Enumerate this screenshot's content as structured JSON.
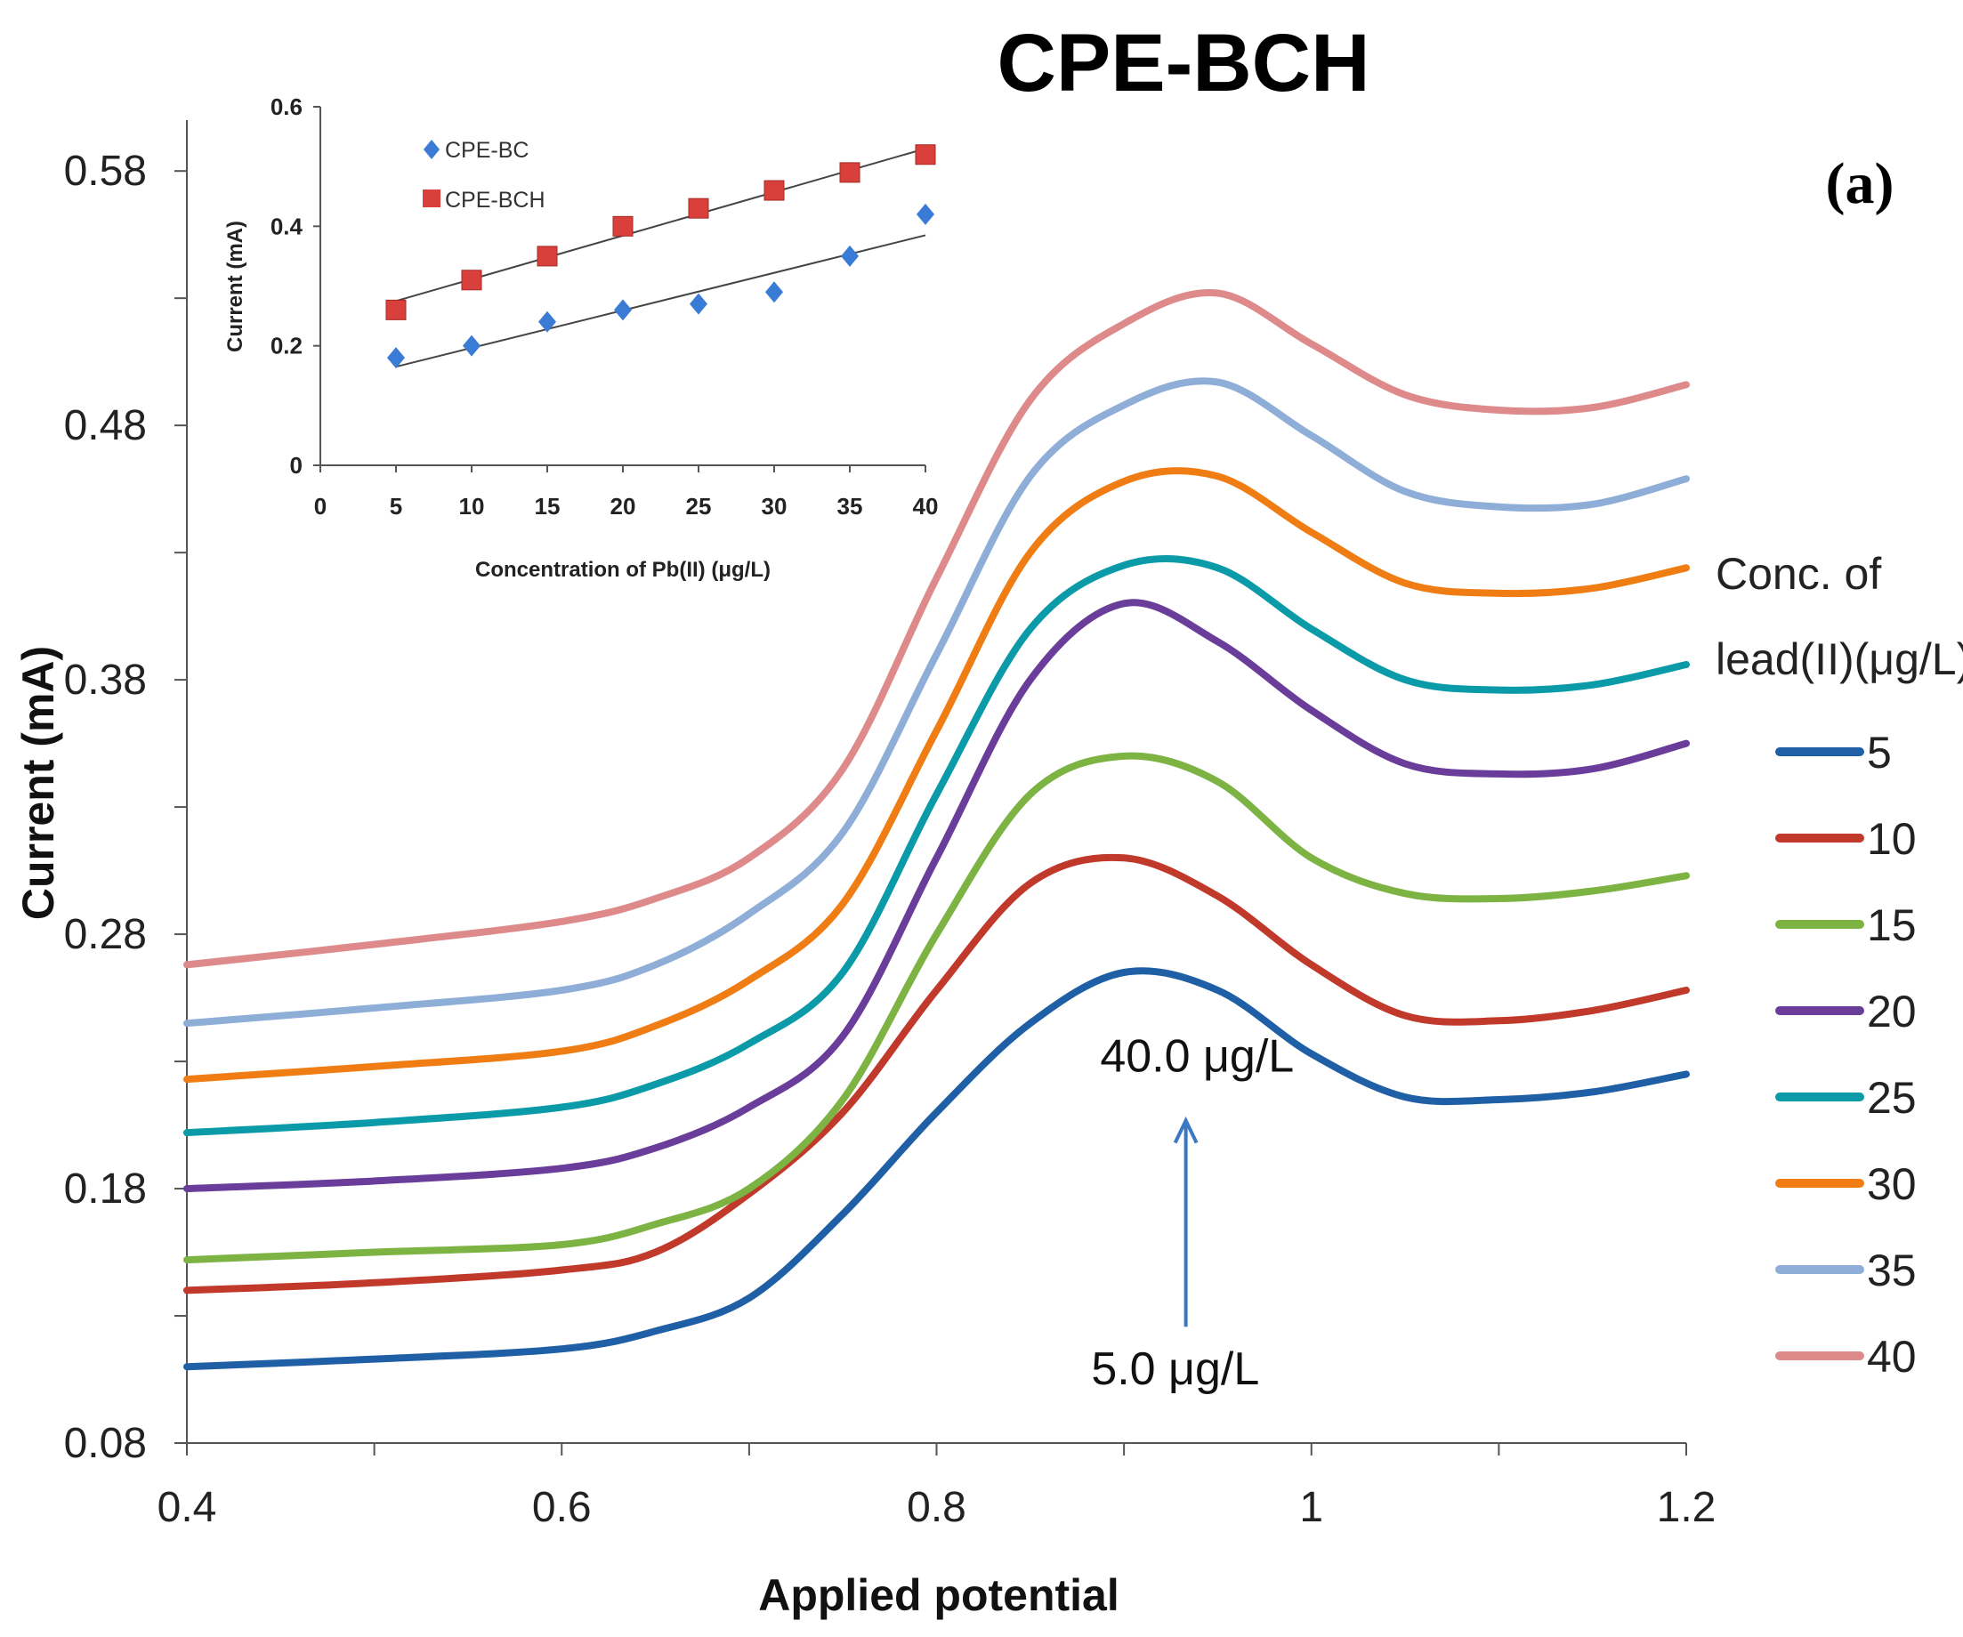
{
  "chart_data": {
    "type": "line",
    "title": "CPE-BCH",
    "panel_label": "(a)",
    "xlabel": "Applied potential",
    "ylabel": "Current (mA)",
    "xlim": [
      0.4,
      1.2
    ],
    "ylim": [
      0.08,
      0.6
    ],
    "x_ticks": [
      0.4,
      0.6,
      0.8,
      1.0,
      1.2
    ],
    "x_tick_labels": [
      "0.4",
      "0.6",
      "0.8",
      "1",
      "1.2"
    ],
    "y_ticks": [
      0.08,
      0.18,
      0.28,
      0.38,
      0.48,
      0.58
    ],
    "y_tick_labels": [
      "0.08",
      "0.18",
      "0.28",
      "0.38",
      "0.48",
      "0.58"
    ],
    "grid": false,
    "legend_title": [
      "Conc. of",
      "lead(II)(μg/L)"
    ],
    "legend_position": "right",
    "x": [
      0.4,
      0.5,
      0.6,
      0.65,
      0.7,
      0.75,
      0.8,
      0.85,
      0.9,
      0.95,
      1.0,
      1.05,
      1.1,
      1.15,
      1.2
    ],
    "series": [
      {
        "name": "5",
        "color": "#1f5fa6",
        "values": [
          0.11,
          0.113,
          0.117,
          0.124,
          0.137,
          0.17,
          0.21,
          0.245,
          0.265,
          0.258,
          0.233,
          0.216,
          0.215,
          0.218,
          0.225
        ]
      },
      {
        "name": "10",
        "color": "#c0392b",
        "values": [
          0.14,
          0.143,
          0.148,
          0.155,
          0.178,
          0.21,
          0.258,
          0.3,
          0.31,
          0.295,
          0.268,
          0.248,
          0.246,
          0.25,
          0.258
        ]
      },
      {
        "name": "15",
        "color": "#7cb342",
        "values": [
          0.152,
          0.155,
          0.158,
          0.166,
          0.18,
          0.215,
          0.28,
          0.335,
          0.35,
          0.34,
          0.31,
          0.296,
          0.294,
          0.297,
          0.303
        ]
      },
      {
        "name": "20",
        "color": "#6a3d9a",
        "values": [
          0.18,
          0.183,
          0.188,
          0.196,
          0.212,
          0.24,
          0.31,
          0.38,
          0.41,
          0.395,
          0.368,
          0.347,
          0.343,
          0.345,
          0.355
        ]
      },
      {
        "name": "25",
        "color": "#0b9aa8",
        "values": [
          0.202,
          0.206,
          0.212,
          0.221,
          0.237,
          0.265,
          0.335,
          0.4,
          0.425,
          0.424,
          0.4,
          0.38,
          0.376,
          0.378,
          0.386
        ]
      },
      {
        "name": "30",
        "color": "#ef7d13",
        "values": [
          0.223,
          0.228,
          0.234,
          0.244,
          0.262,
          0.292,
          0.36,
          0.43,
          0.458,
          0.46,
          0.438,
          0.418,
          0.414,
          0.416,
          0.424
        ]
      },
      {
        "name": "35",
        "color": "#8eaed8",
        "values": [
          0.245,
          0.251,
          0.258,
          0.268,
          0.288,
          0.32,
          0.39,
          0.46,
          0.488,
          0.497,
          0.476,
          0.454,
          0.448,
          0.449,
          0.459
        ]
      },
      {
        "name": "40",
        "color": "#de8a8a",
        "values": [
          0.268,
          0.276,
          0.285,
          0.294,
          0.31,
          0.345,
          0.42,
          0.49,
          0.52,
          0.532,
          0.512,
          0.492,
          0.486,
          0.487,
          0.496
        ]
      }
    ],
    "annotations": [
      {
        "text": "40.0 μg/L",
        "x": 0.93,
        "y": 0.226
      },
      {
        "text": "5.0 μg/L",
        "x": 0.93,
        "y": 0.11
      }
    ],
    "inset": {
      "type": "scatter",
      "xlabel": "Concentration of Pb(II) (μg/L)",
      "ylabel": "Current (mA)",
      "xlim": [
        0,
        40
      ],
      "ylim": [
        0,
        0.6
      ],
      "x_ticks": [
        0,
        5,
        10,
        15,
        20,
        25,
        30,
        35,
        40
      ],
      "y_ticks": [
        0,
        0.2,
        0.4,
        0.6
      ],
      "y_tick_labels": [
        "0",
        "0.2",
        "0.4",
        "0.6"
      ],
      "legend_position": "top-left",
      "x": [
        5,
        10,
        15,
        20,
        25,
        30,
        35,
        40
      ],
      "series": [
        {
          "name": "CPE-BC",
          "marker": "diamond",
          "color": "#3a7bd5",
          "values": [
            0.18,
            0.2,
            0.24,
            0.26,
            0.27,
            0.29,
            0.35,
            0.42
          ],
          "trend": [
            0.165,
            0.385
          ]
        },
        {
          "name": "CPE-BCH",
          "marker": "square",
          "color": "#d9403b",
          "values": [
            0.26,
            0.31,
            0.35,
            0.4,
            0.43,
            0.46,
            0.49,
            0.52
          ],
          "trend": [
            0.275,
            0.53
          ]
        }
      ]
    }
  }
}
